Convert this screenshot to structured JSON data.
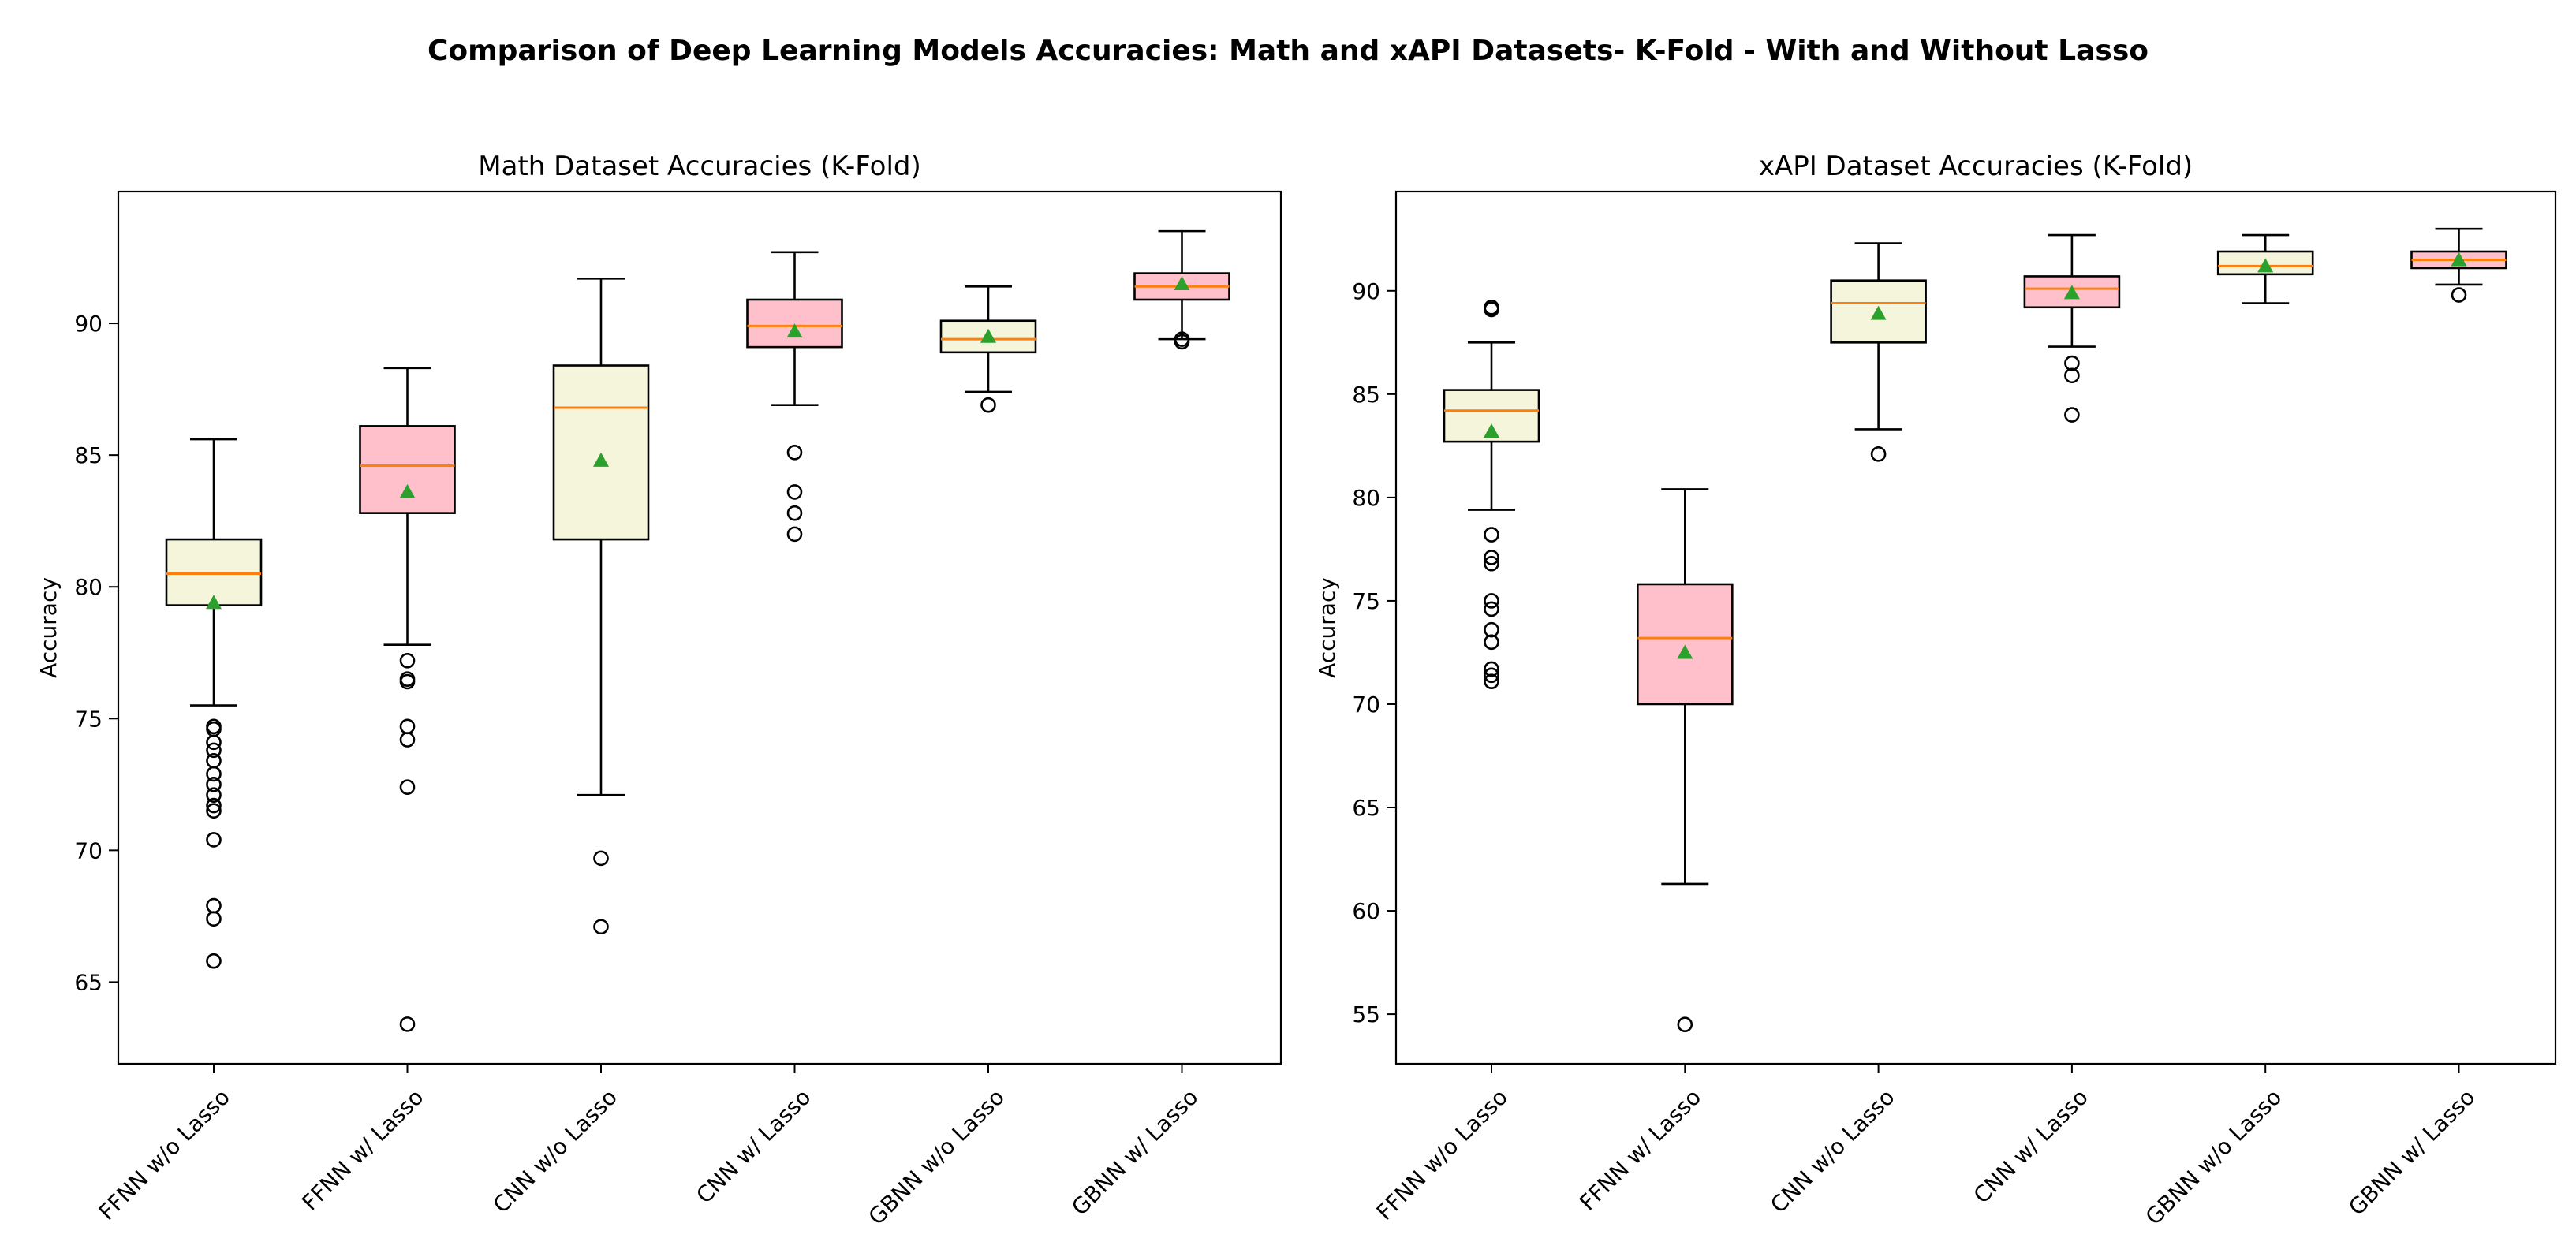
{
  "title": "Comparison of Deep Learning Models Accuracies: Math and xAPI Datasets- K-Fold - With and Without Lasso",
  "colors": {
    "without_lasso": "#f5f5dc",
    "with_lasso": "#ffc0cb",
    "median": "#ff7f0e",
    "mean": "#2ca02c"
  },
  "chart_data": [
    {
      "type": "box",
      "title": "Math Dataset Accuracies (K-Fold)",
      "xlabel": "",
      "ylabel": "Accuracy",
      "ylim": [
        61.9,
        95.0
      ],
      "yticks": [
        65,
        70,
        75,
        80,
        85,
        90
      ],
      "categories": [
        "FFNN w/o Lasso",
        "FFNN w/ Lasso",
        "CNN w/o Lasso",
        "CNN w/ Lasso",
        "GBNN w/o Lasso",
        "GBNN w/ Lasso"
      ],
      "series": [
        {
          "name": "FFNN w/o Lasso",
          "lasso": false,
          "whisker_low": 75.5,
          "q1": 79.3,
          "median": 80.5,
          "q3": 81.8,
          "whisker_high": 85.6,
          "mean": 79.4,
          "outliers": [
            74.7,
            74.6,
            74.1,
            73.8,
            73.4,
            72.9,
            72.5,
            72.1,
            71.7,
            71.5,
            70.4,
            67.9,
            67.4,
            65.8
          ]
        },
        {
          "name": "FFNN w/ Lasso",
          "lasso": true,
          "whisker_low": 77.8,
          "q1": 82.8,
          "median": 84.6,
          "q3": 86.1,
          "whisker_high": 88.3,
          "mean": 83.6,
          "outliers": [
            77.2,
            76.5,
            76.4,
            74.7,
            74.2,
            72.4,
            63.4
          ]
        },
        {
          "name": "CNN w/o Lasso",
          "lasso": false,
          "whisker_low": 72.1,
          "q1": 81.8,
          "median": 86.8,
          "q3": 88.4,
          "whisker_high": 91.7,
          "mean": 84.8,
          "outliers": [
            69.7,
            67.1
          ]
        },
        {
          "name": "CNN w/ Lasso",
          "lasso": true,
          "whisker_low": 86.9,
          "q1": 89.1,
          "median": 89.9,
          "q3": 90.9,
          "whisker_high": 92.7,
          "mean": 89.7,
          "outliers": [
            85.1,
            83.6,
            82.8,
            82.0
          ]
        },
        {
          "name": "GBNN w/o Lasso",
          "lasso": false,
          "whisker_low": 87.4,
          "q1": 88.9,
          "median": 89.4,
          "q3": 90.1,
          "whisker_high": 91.4,
          "mean": 89.5,
          "outliers": [
            86.9
          ]
        },
        {
          "name": "GBNN w/ Lasso",
          "lasso": true,
          "whisker_low": 89.4,
          "q1": 90.9,
          "median": 91.4,
          "q3": 91.9,
          "whisker_high": 93.5,
          "mean": 91.5,
          "outliers": [
            89.4,
            89.3
          ]
        }
      ]
    },
    {
      "type": "box",
      "title": "xAPI Dataset Accuracies (K-Fold)",
      "xlabel": "",
      "ylabel": "Accuracy",
      "ylim": [
        52.6,
        94.8
      ],
      "yticks": [
        55,
        60,
        65,
        70,
        75,
        80,
        85,
        90
      ],
      "categories": [
        "FFNN w/o Lasso",
        "FFNN w/ Lasso",
        "CNN w/o Lasso",
        "CNN w/ Lasso",
        "GBNN w/o Lasso",
        "GBNN w/ Lasso"
      ],
      "series": [
        {
          "name": "FFNN w/o Lasso",
          "lasso": false,
          "whisker_low": 79.4,
          "q1": 82.7,
          "median": 84.2,
          "q3": 85.2,
          "whisker_high": 87.5,
          "mean": 83.2,
          "outliers": [
            89.2,
            89.1,
            78.2,
            77.1,
            76.8,
            75.0,
            74.6,
            73.6,
            73.0,
            71.7,
            71.4,
            71.1
          ]
        },
        {
          "name": "FFNN w/ Lasso",
          "lasso": true,
          "whisker_low": 61.3,
          "q1": 70.0,
          "median": 73.2,
          "q3": 75.8,
          "whisker_high": 80.4,
          "mean": 72.5,
          "outliers": [
            54.5
          ]
        },
        {
          "name": "CNN w/o Lasso",
          "lasso": false,
          "whisker_low": 83.3,
          "q1": 87.5,
          "median": 89.4,
          "q3": 90.5,
          "whisker_high": 92.3,
          "mean": 88.9,
          "outliers": [
            82.1
          ]
        },
        {
          "name": "CNN w/ Lasso",
          "lasso": true,
          "whisker_low": 87.3,
          "q1": 89.2,
          "median": 90.1,
          "q3": 90.7,
          "whisker_high": 92.7,
          "mean": 89.9,
          "outliers": [
            86.5,
            85.9,
            84.0
          ]
        },
        {
          "name": "GBNN w/o Lasso",
          "lasso": false,
          "whisker_low": 89.4,
          "q1": 90.8,
          "median": 91.2,
          "q3": 91.9,
          "whisker_high": 92.7,
          "mean": 91.2,
          "outliers": []
        },
        {
          "name": "GBNN w/ Lasso",
          "lasso": true,
          "whisker_low": 90.3,
          "q1": 91.1,
          "median": 91.5,
          "q3": 91.9,
          "whisker_high": 93.0,
          "mean": 91.5,
          "outliers": [
            89.8
          ]
        }
      ]
    }
  ]
}
